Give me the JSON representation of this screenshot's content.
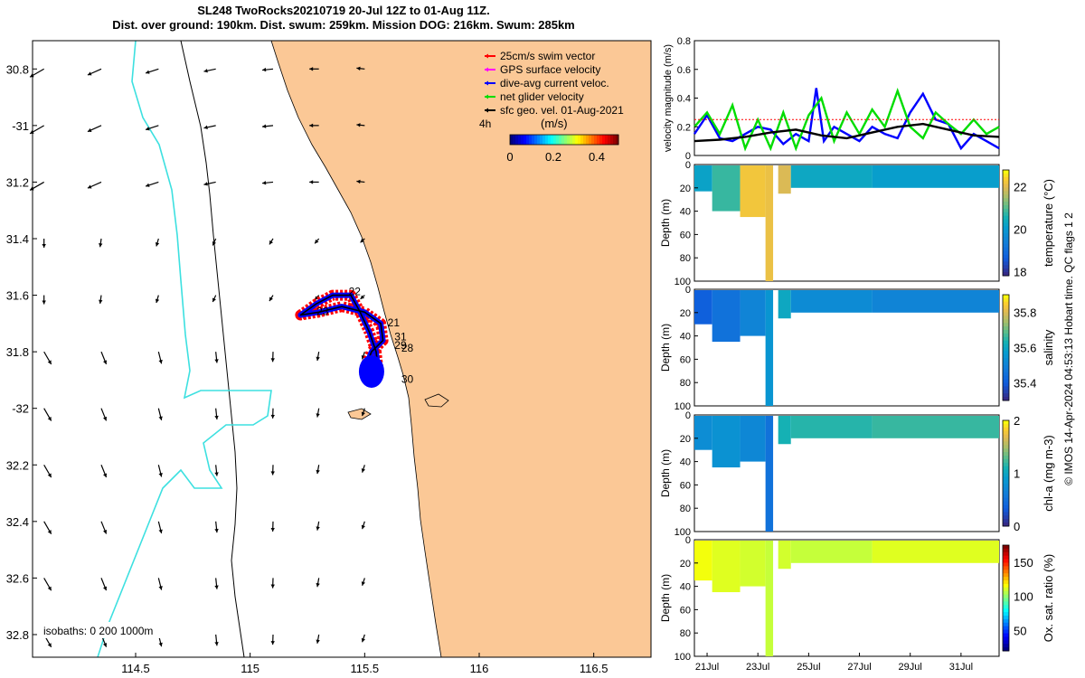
{
  "header": {
    "line1": "SL248 TwoRocks20210719 20-Jul 12Z to 01-Aug 11Z.",
    "line2": "Dist. over ground: 190km. Dist. swum: 259km. Mission DOG: 216km. Swum: 285km"
  },
  "side_text": "© IMOS 14-Apr-2024 04:53:13 Hobart time. QC flags 1  2",
  "colors": {
    "land": "#fbc896",
    "sea": "#ffffff",
    "isobath_shallow": "#000000",
    "isobath_deep": "#3de0e0",
    "track": "#0000ff",
    "swim": "#ff0000"
  },
  "chart_data": [
    {
      "type": "map",
      "xlim": [
        114.05,
        116.75
      ],
      "ylim": [
        -32.88,
        -30.7
      ],
      "x_ticks": [
        114.5,
        115,
        115.5,
        116,
        116.5
      ],
      "x_tick_labels": [
        "114.5",
        "115",
        "115.5",
        "116",
        "116.5"
      ],
      "y_ticks": [
        -30.8,
        -31,
        -31.2,
        -31.4,
        -31.6,
        -31.8,
        -32,
        -32.2,
        -32.4,
        -32.6,
        -32.8
      ],
      "y_tick_labels": [
        "30.8",
        "-31",
        "31.2",
        "31.4",
        "31.6",
        "31.8",
        "-32",
        "32.2",
        "32.4",
        "32.6",
        "32.8"
      ],
      "legend": [
        {
          "label": "25cm/s swim vector",
          "color": "#ff0000"
        },
        {
          "label": "GPS surface velocity",
          "color": "#ff00ff"
        },
        {
          "label": "dive-avg current veloc.",
          "color": "#0000ff"
        },
        {
          "label": "net glider velocity",
          "color": "#00dd00"
        },
        {
          "label": "sfc geo. vel. 01-Aug-2021",
          "color": "#000000"
        }
      ],
      "colorbar": {
        "label": "(m/s)",
        "ticks": [
          "0",
          "0.2",
          "0.4"
        ],
        "range": [
          0,
          0.5
        ]
      },
      "scale_label": "4h",
      "isobaths_label": "isobaths: 0   200  1000m",
      "day_labels": [
        {
          "text": "22",
          "lon": 115.43,
          "lat": -31.6
        },
        {
          "text": "23",
          "lon": 115.29,
          "lat": -31.67
        },
        {
          "text": "21",
          "lon": 115.6,
          "lat": -31.71
        },
        {
          "text": "31",
          "lon": 115.63,
          "lat": -31.76
        },
        {
          "text": "29",
          "lon": 115.63,
          "lat": -31.79
        },
        {
          "text": "28",
          "lon": 115.66,
          "lat": -31.8
        },
        {
          "text": "30",
          "lon": 115.66,
          "lat": -31.91
        }
      ],
      "glider_track": [
        [
          115.22,
          -31.67
        ],
        [
          115.29,
          -31.63
        ],
        [
          115.36,
          -31.6
        ],
        [
          115.44,
          -31.6
        ],
        [
          115.48,
          -31.66
        ],
        [
          115.52,
          -31.73
        ],
        [
          115.55,
          -31.8
        ],
        [
          115.56,
          -31.87
        ],
        [
          115.53,
          -31.9
        ],
        [
          115.5,
          -31.86
        ],
        [
          115.53,
          -31.8
        ],
        [
          115.58,
          -31.76
        ],
        [
          115.57,
          -31.7
        ],
        [
          115.5,
          -31.66
        ],
        [
          115.4,
          -31.64
        ],
        [
          115.3,
          -31.66
        ]
      ]
    },
    {
      "type": "line",
      "ylabel": "velocity magnitude (m/s)",
      "ylim": [
        0,
        0.8
      ],
      "y_ticks": [
        "0",
        "0.2",
        "0.4",
        "0.6",
        "0.8"
      ],
      "x_range_days": [
        20.5,
        32.5
      ],
      "series": [
        {
          "name": "dive-avg current veloc.",
          "color": "#0000ff",
          "x": [
            20.5,
            21,
            21.5,
            22,
            22.5,
            23,
            23.5,
            24,
            24.5,
            25,
            25.3,
            25.6,
            26,
            26.5,
            27,
            27.5,
            28,
            28.5,
            29,
            29.5,
            30,
            30.5,
            31,
            31.5,
            32,
            32.5
          ],
          "y": [
            0.15,
            0.28,
            0.12,
            0.1,
            0.15,
            0.2,
            0.18,
            0.08,
            0.15,
            0.1,
            0.47,
            0.1,
            0.2,
            0.15,
            0.1,
            0.2,
            0.15,
            0.12,
            0.3,
            0.43,
            0.25,
            0.22,
            0.05,
            0.15,
            0.1,
            0.05
          ]
        },
        {
          "name": "net glider velocity",
          "color": "#00dd00",
          "x": [
            20.5,
            21,
            21.5,
            22,
            22.5,
            23,
            23.5,
            24,
            24.5,
            25,
            25.5,
            26,
            26.5,
            27,
            27.5,
            28,
            28.5,
            29,
            29.5,
            30,
            30.5,
            31,
            31.5,
            32,
            32.5
          ],
          "y": [
            0.2,
            0.3,
            0.15,
            0.35,
            0.05,
            0.25,
            0.05,
            0.3,
            0.05,
            0.28,
            0.4,
            0.1,
            0.3,
            0.15,
            0.32,
            0.2,
            0.45,
            0.2,
            0.12,
            0.3,
            0.22,
            0.15,
            0.25,
            0.15,
            0.2
          ]
        },
        {
          "name": "sfc geo. vel.",
          "color": "#000000",
          "x": [
            20.5,
            21.5,
            22.5,
            23.5,
            24.5,
            25.5,
            26.5,
            27.5,
            28.5,
            29.5,
            30.5,
            31.5,
            32.5
          ],
          "y": [
            0.1,
            0.11,
            0.13,
            0.16,
            0.18,
            0.14,
            0.12,
            0.16,
            0.2,
            0.22,
            0.18,
            0.14,
            0.13
          ]
        },
        {
          "name": "25cm/s swim vector",
          "color": "#ff0000",
          "x": [
            20.5,
            32.5
          ],
          "y": [
            0.25,
            0.25
          ]
        }
      ]
    },
    {
      "type": "heatmap",
      "ylabel": "Depth (m)",
      "ylim": [
        100,
        0
      ],
      "y_ticks": [
        "0",
        "20",
        "40",
        "60",
        "80",
        "100"
      ],
      "colorbar_label": "temperature (°C)",
      "colorbar_ticks": [
        "18",
        "20",
        "22"
      ],
      "crange": [
        17.8,
        22.8
      ],
      "segments": [
        [
          20.5,
          21.2,
          23,
          20.2
        ],
        [
          21.2,
          22.3,
          40,
          20.8
        ],
        [
          22.3,
          23.3,
          45,
          22.3
        ],
        [
          23.3,
          23.6,
          100,
          22.2
        ],
        [
          23.8,
          24.3,
          25,
          22.0
        ],
        [
          24.3,
          27.5,
          20,
          20.3
        ],
        [
          27.5,
          32.5,
          20,
          20.1
        ]
      ]
    },
    {
      "type": "heatmap",
      "ylabel": "Depth (m)",
      "ylim": [
        100,
        0
      ],
      "y_ticks": [
        "0",
        "20",
        "40",
        "60",
        "80",
        "100"
      ],
      "colorbar_label": "salinity",
      "colorbar_ticks": [
        "35.4",
        "35.6",
        "35.8"
      ],
      "crange": [
        35.3,
        35.9
      ],
      "segments": [
        [
          20.5,
          21.2,
          30,
          35.4
        ],
        [
          21.2,
          22.3,
          45,
          35.45
        ],
        [
          22.3,
          23.3,
          40,
          35.5
        ],
        [
          23.3,
          23.6,
          100,
          35.55
        ],
        [
          23.8,
          24.3,
          25,
          35.6
        ],
        [
          24.3,
          27.5,
          20,
          35.52
        ],
        [
          27.5,
          32.5,
          20,
          35.5
        ]
      ]
    },
    {
      "type": "heatmap",
      "ylabel": "Depth (m)",
      "ylim": [
        100,
        0
      ],
      "y_ticks": [
        "0",
        "20",
        "40",
        "60",
        "80",
        "100"
      ],
      "colorbar_label": "chl-a (mg m-3)",
      "colorbar_ticks": [
        "0",
        "1",
        "2"
      ],
      "crange": [
        0,
        2
      ],
      "segments": [
        [
          20.5,
          21.2,
          30,
          0.75
        ],
        [
          21.2,
          22.3,
          45,
          0.8
        ],
        [
          22.3,
          23.3,
          40,
          0.7
        ],
        [
          23.3,
          23.6,
          100,
          0.5
        ],
        [
          23.8,
          24.3,
          25,
          1.1
        ],
        [
          24.3,
          27.5,
          20,
          1.15
        ],
        [
          27.5,
          32.5,
          20,
          1.2
        ]
      ]
    },
    {
      "type": "heatmap",
      "ylabel": "Depth (m)",
      "ylim": [
        100,
        0
      ],
      "y_ticks": [
        "0",
        "20",
        "40",
        "60",
        "80",
        "100"
      ],
      "colorbar_label": "Ox. sat. ratio (%)",
      "colorbar_ticks": [
        "50",
        "100",
        "150"
      ],
      "crange": [
        20,
        175
      ],
      "segments": [
        [
          20.5,
          21.2,
          35,
          115
        ],
        [
          21.2,
          22.3,
          45,
          112
        ],
        [
          22.3,
          23.3,
          40,
          110
        ],
        [
          23.3,
          23.6,
          100,
          108
        ],
        [
          23.8,
          24.3,
          25,
          110
        ],
        [
          24.3,
          27.5,
          20,
          108
        ],
        [
          27.5,
          32.5,
          20,
          112
        ]
      ]
    }
  ],
  "time_axis": {
    "ticks": [
      21,
      23,
      25,
      27,
      29,
      31
    ],
    "labels": [
      "21Jul",
      "23Jul",
      "25Jul",
      "27Jul",
      "29Jul",
      "31Jul"
    ]
  }
}
